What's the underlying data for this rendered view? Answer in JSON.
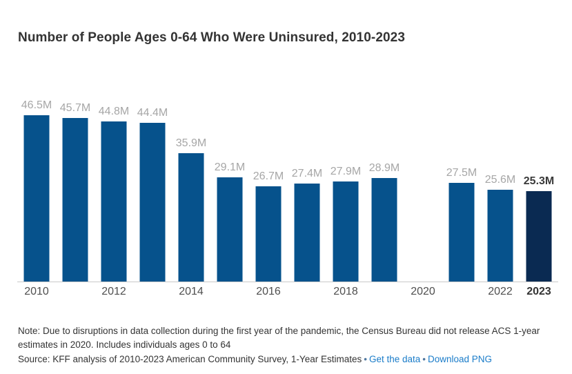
{
  "chart_data": {
    "type": "bar",
    "title": "Number of People Ages 0-64 Who Were Uninsured, 2010-2023",
    "x": [
      "2010",
      "2011",
      "2012",
      "2013",
      "2014",
      "2015",
      "2016",
      "2017",
      "2018",
      "2019",
      "2020",
      "2021",
      "2022",
      "2023"
    ],
    "values": [
      46.5,
      45.7,
      44.8,
      44.4,
      35.9,
      29.1,
      26.7,
      27.4,
      27.9,
      28.9,
      null,
      27.5,
      25.6,
      25.3
    ],
    "bar_labels": [
      "46.5M",
      "45.7M",
      "44.8M",
      "44.4M",
      "35.9M",
      "29.1M",
      "26.7M",
      "27.4M",
      "27.9M",
      "28.9M",
      null,
      "27.5M",
      "25.6M",
      "25.3M"
    ],
    "tick_labels": [
      "2010",
      "",
      "2012",
      "",
      "2014",
      "",
      "2016",
      "",
      "2018",
      "",
      "2020",
      "",
      "2022",
      "2023"
    ],
    "unit": "M",
    "ylim": [
      0,
      46.5
    ],
    "grid": false,
    "legend": "none",
    "highlight_index": 13,
    "colors": {
      "bar": "#06528C",
      "highlight_bar": "#0A2A52",
      "value_label": "#A6A6A6",
      "highlight_value_label": "#3A3A3A",
      "tick": "#4F4F4F",
      "highlight_tick": "#333333",
      "axis_line": "#C9C9C9"
    }
  },
  "footer": {
    "note": "Note: Due to disruptions in data collection during the first year of the pandemic, the Census Bureau did not release ACS 1-year estimates in 2020. Includes individuals ages 0 to 64",
    "source": "Source: KFF analysis of 2010-2023 American Community Survey, 1-Year Estimates",
    "separator": "•",
    "links": [
      {
        "label": "Get the data"
      },
      {
        "label": "Download PNG"
      }
    ],
    "link_color": "#1A7CC9",
    "separator_color": "#5078A0"
  }
}
